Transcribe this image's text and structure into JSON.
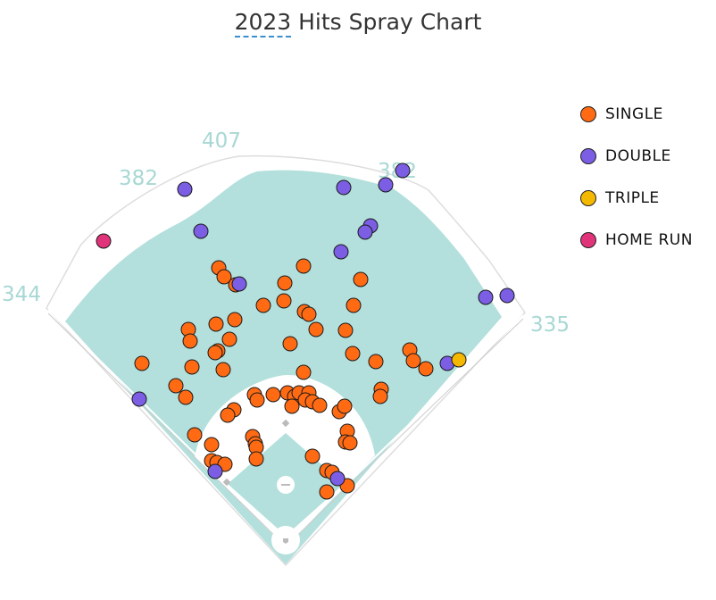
{
  "title": {
    "prefix": "2023",
    "rest": " Hits Spray Chart"
  },
  "colors": {
    "field": "#b3e0dc",
    "outline": "#dddddd",
    "dist_text": "#a8d8d4",
    "single": "#ff6a13",
    "double": "#7b5ee3",
    "triple": "#f5b800",
    "home_run": "#e0337a"
  },
  "distances": [
    {
      "label": "407"
    },
    {
      "label": "382"
    },
    {
      "label": "382"
    },
    {
      "label": "344"
    },
    {
      "label": "335"
    }
  ],
  "legend": [
    {
      "key": "single",
      "label": "SINGLE"
    },
    {
      "key": "double",
      "label": "DOUBLE"
    },
    {
      "key": "triple",
      "label": "TRIPLE"
    },
    {
      "key": "home_run",
      "label": "HOME RUN"
    }
  ],
  "chart_data": {
    "type": "scatter",
    "title": "2023 Hits Spray Chart",
    "series": [
      {
        "name": "SINGLE",
        "key": "single",
        "points": [
          [
            245,
            300
          ],
          [
            251,
            310
          ],
          [
            264,
            319
          ],
          [
            319,
            317
          ],
          [
            340,
            298
          ],
          [
            404,
            313
          ],
          [
            295,
            342
          ],
          [
            318,
            337
          ],
          [
            341,
            349
          ],
          [
            346,
            352
          ],
          [
            396,
            342
          ],
          [
            211,
            369
          ],
          [
            242,
            363
          ],
          [
            263,
            358
          ],
          [
            213,
            382
          ],
          [
            257,
            380
          ],
          [
            244,
            393
          ],
          [
            241,
            395
          ],
          [
            325,
            385
          ],
          [
            354,
            369
          ],
          [
            387,
            370
          ],
          [
            395,
            396
          ],
          [
            421,
            405
          ],
          [
            459,
            392
          ],
          [
            463,
            404
          ],
          [
            477,
            413
          ],
          [
            159,
            407
          ],
          [
            215,
            411
          ],
          [
            250,
            414
          ],
          [
            340,
            417
          ],
          [
            197,
            432
          ],
          [
            208,
            445
          ],
          [
            285,
            442
          ],
          [
            288,
            448
          ],
          [
            306,
            442
          ],
          [
            322,
            440
          ],
          [
            330,
            444
          ],
          [
            335,
            440
          ],
          [
            346,
            440
          ],
          [
            342,
            448
          ],
          [
            350,
            450
          ],
          [
            358,
            454
          ],
          [
            327,
            455
          ],
          [
            262,
            459
          ],
          [
            255,
            465
          ],
          [
            380,
            461
          ],
          [
            386,
            455
          ],
          [
            427,
            436
          ],
          [
            426,
            444
          ],
          [
            218,
            487
          ],
          [
            283,
            489
          ],
          [
            286,
            497
          ],
          [
            287,
            501
          ],
          [
            237,
            498
          ],
          [
            287,
            514
          ],
          [
            350,
            511
          ],
          [
            389,
            483
          ],
          [
            387,
            495
          ],
          [
            392,
            496
          ],
          [
            237,
            516
          ],
          [
            243,
            518
          ],
          [
            252,
            520
          ],
          [
            366,
            527
          ],
          [
            372,
            529
          ],
          [
            389,
            544
          ],
          [
            366,
            551
          ]
        ]
      },
      {
        "name": "DOUBLE",
        "key": "double",
        "points": [
          [
            207,
            212
          ],
          [
            225,
            259
          ],
          [
            385,
            210
          ],
          [
            432,
            207
          ],
          [
            451,
            191
          ],
          [
            415,
            253
          ],
          [
            409,
            260
          ],
          [
            382,
            282
          ],
          [
            268,
            318
          ],
          [
            544,
            333
          ],
          [
            568,
            331
          ],
          [
            156,
            447
          ],
          [
            501,
            407
          ],
          [
            241,
            528
          ],
          [
            378,
            536
          ]
        ]
      },
      {
        "name": "TRIPLE",
        "key": "triple",
        "points": [
          [
            514,
            403
          ]
        ]
      },
      {
        "name": "HOME RUN",
        "key": "home_run",
        "points": [
          [
            116,
            270
          ]
        ]
      }
    ]
  }
}
